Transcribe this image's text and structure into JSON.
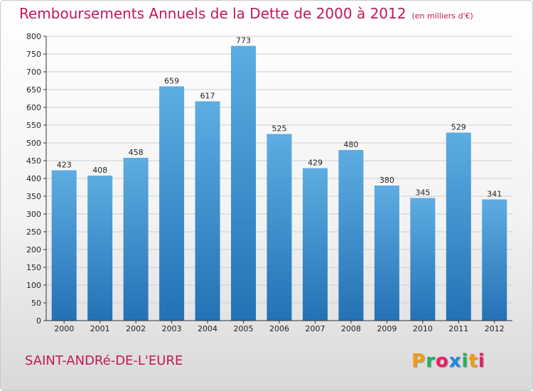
{
  "header": {
    "title": "Remboursements Annuels de la Dette de 2000 à 2012",
    "unit_note": "(en milliers d'€)"
  },
  "footer": {
    "commune": "SAINT-ANDRé-DE-L'EURE",
    "logo_text": "Proxiti",
    "logo_colors": [
      "#f39c12",
      "#27ae60",
      "#e91e63",
      "#1e88e5",
      "#27ae60",
      "#f39c12",
      "#e91e63"
    ]
  },
  "colors": {
    "bar_top": "#5dade2",
    "bar_bottom": "#2471b5",
    "grid": "#cfcfcf",
    "text_accent": "#c2185b"
  },
  "chart_data": {
    "type": "bar",
    "title": "Remboursements Annuels de la Dette de 2000 à 2012",
    "xlabel": "",
    "ylabel": "",
    "categories": [
      "2000",
      "2001",
      "2002",
      "2003",
      "2004",
      "2005",
      "2006",
      "2007",
      "2008",
      "2009",
      "2010",
      "2011",
      "2012"
    ],
    "values": [
      423,
      408,
      458,
      659,
      617,
      773,
      525,
      429,
      480,
      380,
      345,
      529,
      341
    ],
    "ylim": [
      0,
      800
    ],
    "yticks": [
      0,
      50,
      100,
      150,
      200,
      250,
      300,
      350,
      400,
      450,
      500,
      550,
      600,
      650,
      700,
      750,
      800
    ],
    "grid": true,
    "data_labels": true
  }
}
